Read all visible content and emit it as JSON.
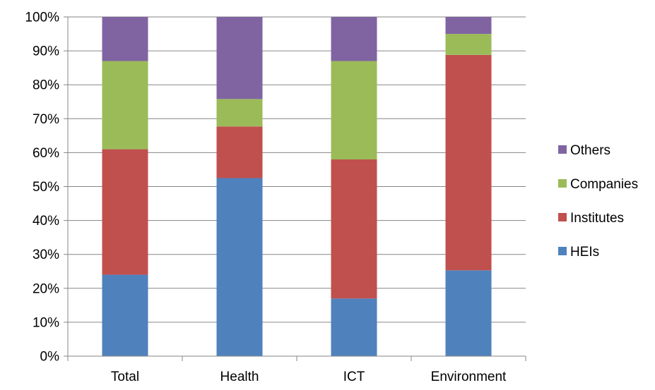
{
  "chart_data": {
    "type": "bar",
    "stacked": true,
    "percent_stacked": true,
    "categories": [
      "Total",
      "Health",
      "ICT",
      "Environment"
    ],
    "series": [
      {
        "name": "HEIs",
        "color": "#4f81bd",
        "values": [
          24,
          52.5,
          17,
          25.3
        ]
      },
      {
        "name": "Institutes",
        "color": "#c0504d",
        "values": [
          37,
          15.2,
          41,
          63.5
        ]
      },
      {
        "name": "Companies",
        "color": "#9bbb59",
        "values": [
          26,
          8.1,
          29,
          6.2
        ]
      },
      {
        "name": "Others",
        "color": "#8064a2",
        "values": [
          13,
          24.2,
          13,
          5
        ]
      }
    ],
    "ylim": [
      0,
      100
    ],
    "y_ticks": [
      "0%",
      "10%",
      "20%",
      "30%",
      "40%",
      "50%",
      "60%",
      "70%",
      "80%",
      "90%",
      "100%"
    ],
    "grid": true,
    "legend": {
      "placement": "right",
      "order": [
        "Others",
        "Companies",
        "Institutes",
        "HEIs"
      ]
    },
    "colors": {
      "gridline": "#868686",
      "axis": "#868686"
    }
  }
}
